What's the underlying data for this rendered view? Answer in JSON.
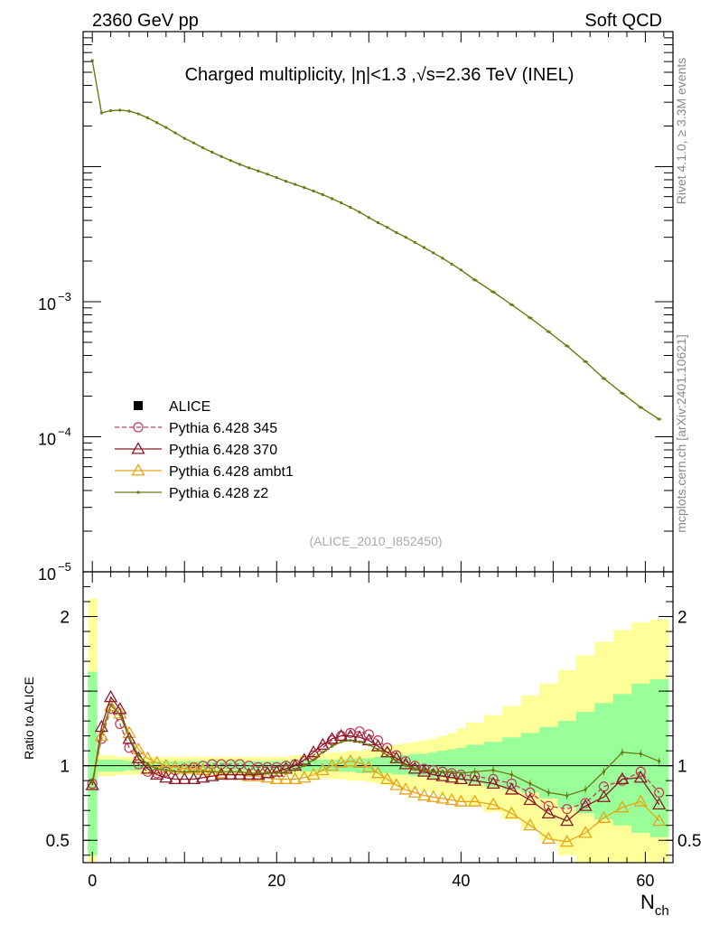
{
  "header": {
    "left_label": "2360 GeV pp",
    "right_label": "Soft QCD",
    "side_label_top": "Rivet 4.1.0, ≥ 3.3M events",
    "side_label_bottom": "mcplots.cern.ch [arXiv:2401.10621]"
  },
  "chart_data": [
    {
      "panel": "main",
      "type": "line",
      "title": "Charged multiplicity, |η|<1.3 ,√s=2.36 TeV (INEL)",
      "xlabel": "N_ch",
      "ylabel": "",
      "yscale": "log",
      "xlim": [
        -1,
        63
      ],
      "ylim": [
        1e-05,
        0.1
      ],
      "ytick_labels": [
        {
          "value": 0.001,
          "base": "10",
          "exp": "−3"
        },
        {
          "value": 0.0001,
          "base": "10",
          "exp": "−4"
        },
        {
          "value": 1e-05,
          "base": "10",
          "exp": "−5"
        }
      ],
      "watermark": "(ALICE_2010_I852450)",
      "legend": [
        {
          "label": "ALICE",
          "marker": "square",
          "color": "#000000"
        },
        {
          "label": "Pythia 6.428 345",
          "marker": "circle",
          "color": "#c0395a",
          "dash": true
        },
        {
          "label": "Pythia 6.428 370",
          "marker": "triangle",
          "color": "#8b1a2b"
        },
        {
          "label": "Pythia 6.428 ambt1",
          "marker": "triangle",
          "color": "#e8a317"
        },
        {
          "label": "Pythia 6.428 z2",
          "marker": "dot",
          "color": "#6b7a12"
        }
      ],
      "series": [
        {
          "name": "Pythia 6.428 z2",
          "color": "#6b7a12",
          "x": [
            0,
            1,
            2,
            3,
            4,
            5,
            6,
            7,
            8,
            9,
            10,
            11,
            12,
            13,
            14,
            15,
            16,
            17,
            18,
            19,
            20,
            21,
            22,
            23,
            24,
            25,
            26,
            27,
            28,
            29,
            30,
            31,
            32,
            33,
            34,
            35,
            36,
            37,
            38,
            39,
            40,
            41.5,
            43.5,
            45.5,
            47.5,
            49.5,
            51.5,
            53.5,
            55.5,
            57.5,
            59.5,
            61.5
          ],
          "y": [
            0.061,
            0.025,
            0.026,
            0.0262,
            0.0258,
            0.0246,
            0.023,
            0.0212,
            0.0195,
            0.0178,
            0.0162,
            0.015,
            0.0138,
            0.0128,
            0.0119,
            0.0111,
            0.0104,
            0.0098,
            0.0093,
            0.0088,
            0.0083,
            0.0078,
            0.0074,
            0.007,
            0.0066,
            0.0062,
            0.0058,
            0.0054,
            0.005,
            0.0046,
            0.0042,
            0.00385,
            0.00355,
            0.00325,
            0.003,
            0.00275,
            0.00252,
            0.0023,
            0.0021,
            0.0019,
            0.00172,
            0.00145,
            0.00118,
            0.00095,
            0.00076,
            0.0006,
            0.00047,
            0.00036,
            0.00027,
            0.00021,
            0.000165,
            0.000135
          ]
        }
      ]
    },
    {
      "panel": "ratio",
      "type": "line",
      "xlabel": "N_ch",
      "ylabel": "Ratio to ALICE",
      "xlim": [
        -1,
        63
      ],
      "ylim": [
        0.35,
        2.3
      ],
      "xtick_labels": [
        "0",
        "20",
        "40",
        "60"
      ],
      "ytick_labels": [
        "0.5",
        "1",
        "2"
      ],
      "bands": {
        "x_edges": [
          -0.5,
          0.5,
          1.5,
          2.5,
          3.5,
          4.5,
          5.5,
          6.5,
          7.5,
          8.5,
          9.5,
          10.5,
          11.5,
          12.5,
          13.5,
          14.5,
          15.5,
          16.5,
          17.5,
          18.5,
          19.5,
          20.5,
          21.5,
          22.5,
          23.5,
          24.5,
          25.5,
          26.5,
          27.5,
          28.5,
          29.5,
          30.5,
          31.5,
          32.5,
          33.5,
          34.5,
          35.5,
          36.5,
          37.5,
          38.5,
          39.5,
          40.5,
          42.5,
          44.5,
          46.5,
          48.5,
          50.5,
          52.5,
          54.5,
          56.5,
          58.5,
          60.5,
          62.5
        ],
        "stat_lo": [
          0.4,
          0.96,
          0.96,
          0.96,
          0.97,
          0.97,
          0.97,
          0.97,
          0.97,
          0.97,
          0.97,
          0.97,
          0.97,
          0.97,
          0.97,
          0.97,
          0.97,
          0.97,
          0.97,
          0.97,
          0.97,
          0.97,
          0.97,
          0.96,
          0.96,
          0.96,
          0.96,
          0.96,
          0.96,
          0.95,
          0.95,
          0.95,
          0.95,
          0.94,
          0.94,
          0.93,
          0.93,
          0.92,
          0.92,
          0.91,
          0.9,
          0.88,
          0.86,
          0.84,
          0.82,
          0.78,
          0.72,
          0.68,
          0.64,
          0.6,
          0.55,
          0.52
        ],
        "stat_hi": [
          1.63,
          1.04,
          1.04,
          1.04,
          1.03,
          1.03,
          1.03,
          1.03,
          1.03,
          1.03,
          1.03,
          1.03,
          1.03,
          1.03,
          1.03,
          1.03,
          1.03,
          1.03,
          1.03,
          1.03,
          1.03,
          1.03,
          1.03,
          1.04,
          1.04,
          1.04,
          1.04,
          1.04,
          1.05,
          1.05,
          1.05,
          1.06,
          1.06,
          1.07,
          1.07,
          1.08,
          1.08,
          1.09,
          1.1,
          1.11,
          1.12,
          1.14,
          1.16,
          1.19,
          1.22,
          1.26,
          1.3,
          1.36,
          1.42,
          1.48,
          1.55,
          1.58
        ],
        "sys_lo": [
          0.3,
          0.93,
          0.93,
          0.94,
          0.94,
          0.94,
          0.94,
          0.94,
          0.94,
          0.94,
          0.94,
          0.94,
          0.94,
          0.94,
          0.94,
          0.94,
          0.94,
          0.94,
          0.94,
          0.94,
          0.94,
          0.94,
          0.93,
          0.93,
          0.92,
          0.92,
          0.91,
          0.91,
          0.9,
          0.9,
          0.89,
          0.88,
          0.87,
          0.86,
          0.85,
          0.84,
          0.83,
          0.82,
          0.8,
          0.78,
          0.76,
          0.73,
          0.69,
          0.64,
          0.58,
          0.5,
          0.4,
          0.32,
          0.3,
          0.3,
          0.3,
          0.3
        ],
        "sys_hi": [
          2.12,
          1.07,
          1.07,
          1.06,
          1.06,
          1.06,
          1.06,
          1.06,
          1.06,
          1.06,
          1.06,
          1.06,
          1.06,
          1.06,
          1.06,
          1.06,
          1.06,
          1.06,
          1.06,
          1.06,
          1.06,
          1.06,
          1.07,
          1.07,
          1.08,
          1.08,
          1.09,
          1.09,
          1.1,
          1.1,
          1.11,
          1.12,
          1.13,
          1.14,
          1.15,
          1.16,
          1.17,
          1.18,
          1.2,
          1.22,
          1.25,
          1.29,
          1.34,
          1.4,
          1.47,
          1.55,
          1.64,
          1.74,
          1.83,
          1.91,
          1.96,
          1.98
        ]
      },
      "series": [
        {
          "name": "Pythia 6.428 345",
          "color": "#c0395a",
          "marker": "circle",
          "dash": true,
          "x": [
            0,
            1,
            2,
            3,
            4,
            5,
            6,
            7,
            8,
            9,
            10,
            11,
            12,
            13,
            14,
            15,
            16,
            17,
            18,
            19,
            20,
            21,
            22,
            23,
            24,
            25,
            26,
            27,
            28,
            29,
            30,
            31,
            32,
            33,
            34,
            35,
            36,
            37,
            38,
            39,
            40,
            41.5,
            43.5,
            45.5,
            47.5,
            49.5,
            51.5,
            53.5,
            55.5,
            57.5,
            59.5,
            61.5
          ],
          "y": [
            0.88,
            1.18,
            1.38,
            1.28,
            1.12,
            1.01,
            0.96,
            0.95,
            0.96,
            0.97,
            0.98,
            0.99,
            1.0,
            1.01,
            1.01,
            1.01,
            1.01,
            1.0,
            0.99,
            0.99,
            0.99,
            1.0,
            1.01,
            1.03,
            1.07,
            1.12,
            1.17,
            1.2,
            1.22,
            1.23,
            1.21,
            1.17,
            1.12,
            1.07,
            1.03,
            1.0,
            0.98,
            0.97,
            0.96,
            0.95,
            0.94,
            0.93,
            0.91,
            0.88,
            0.82,
            0.73,
            0.71,
            0.75,
            0.86,
            0.9,
            0.96,
            0.82
          ]
        },
        {
          "name": "Pythia 6.428 370",
          "color": "#8b1a2b",
          "marker": "triangle",
          "x": [
            0,
            1,
            2,
            3,
            4,
            5,
            6,
            7,
            8,
            9,
            10,
            11,
            12,
            13,
            14,
            15,
            16,
            17,
            18,
            19,
            20,
            21,
            22,
            23,
            24,
            25,
            26,
            27,
            28,
            29,
            30,
            31,
            32,
            33,
            34,
            35,
            36,
            37,
            38,
            39,
            40,
            41.5,
            43.5,
            45.5,
            47.5,
            49.5,
            51.5,
            53.5,
            55.5,
            57.5,
            59.5,
            61.5
          ],
          "y": [
            0.87,
            1.26,
            1.46,
            1.38,
            1.18,
            1.05,
            0.98,
            0.94,
            0.92,
            0.91,
            0.91,
            0.91,
            0.92,
            0.93,
            0.94,
            0.94,
            0.94,
            0.94,
            0.94,
            0.95,
            0.96,
            0.98,
            1.0,
            1.04,
            1.09,
            1.14,
            1.18,
            1.2,
            1.2,
            1.19,
            1.17,
            1.13,
            1.09,
            1.05,
            1.01,
            0.98,
            0.96,
            0.94,
            0.93,
            0.92,
            0.91,
            0.9,
            0.88,
            0.84,
            0.77,
            0.68,
            0.63,
            0.73,
            0.79,
            0.91,
            0.92,
            0.74
          ]
        },
        {
          "name": "Pythia 6.428 ambt1",
          "color": "#e8a317",
          "marker": "triangle",
          "x": [
            0,
            1,
            2,
            3,
            4,
            5,
            6,
            7,
            8,
            9,
            10,
            11,
            12,
            13,
            14,
            15,
            16,
            17,
            18,
            19,
            20,
            21,
            22,
            23,
            24,
            25,
            26,
            27,
            28,
            29,
            30,
            31,
            32,
            33,
            34,
            35,
            36,
            37,
            38,
            39,
            40,
            41.5,
            43.5,
            45.5,
            47.5,
            49.5,
            51.5,
            53.5,
            55.5,
            57.5,
            59.5,
            61.5
          ],
          "y": [
            0.87,
            1.2,
            1.4,
            1.35,
            1.22,
            1.11,
            1.05,
            1.02,
            1.0,
            0.99,
            0.98,
            0.98,
            0.97,
            0.96,
            0.95,
            0.94,
            0.94,
            0.93,
            0.93,
            0.92,
            0.91,
            0.91,
            0.91,
            0.92,
            0.94,
            0.97,
            1.0,
            1.02,
            1.03,
            1.02,
            0.99,
            0.95,
            0.91,
            0.87,
            0.84,
            0.82,
            0.8,
            0.79,
            0.78,
            0.77,
            0.76,
            0.76,
            0.74,
            0.68,
            0.6,
            0.51,
            0.49,
            0.55,
            0.65,
            0.72,
            0.76,
            0.63
          ]
        },
        {
          "name": "Pythia 6.428 z2",
          "color": "#6b7a12",
          "marker": "dot",
          "x": [
            0,
            1,
            2,
            3,
            4,
            5,
            6,
            7,
            8,
            9,
            10,
            11,
            12,
            13,
            14,
            15,
            16,
            17,
            18,
            19,
            20,
            21,
            22,
            23,
            24,
            25,
            26,
            27,
            28,
            29,
            30,
            31,
            32,
            33,
            34,
            35,
            36,
            37,
            38,
            39,
            40,
            41.5,
            43.5,
            45.5,
            47.5,
            49.5,
            51.5,
            53.5,
            55.5,
            57.5,
            59.5,
            61.5
          ],
          "y": [
            0.89,
            1.22,
            1.41,
            1.34,
            1.19,
            1.07,
            1.01,
            0.98,
            0.97,
            0.96,
            0.96,
            0.96,
            0.96,
            0.96,
            0.96,
            0.96,
            0.96,
            0.95,
            0.95,
            0.95,
            0.95,
            0.96,
            0.97,
            1.0,
            1.04,
            1.09,
            1.13,
            1.16,
            1.17,
            1.16,
            1.14,
            1.11,
            1.07,
            1.03,
            1.0,
            0.98,
            0.97,
            0.96,
            0.96,
            0.96,
            0.95,
            0.96,
            0.97,
            0.94,
            0.88,
            0.82,
            0.8,
            0.84,
            0.96,
            1.09,
            1.08,
            1.03
          ]
        }
      ]
    }
  ]
}
